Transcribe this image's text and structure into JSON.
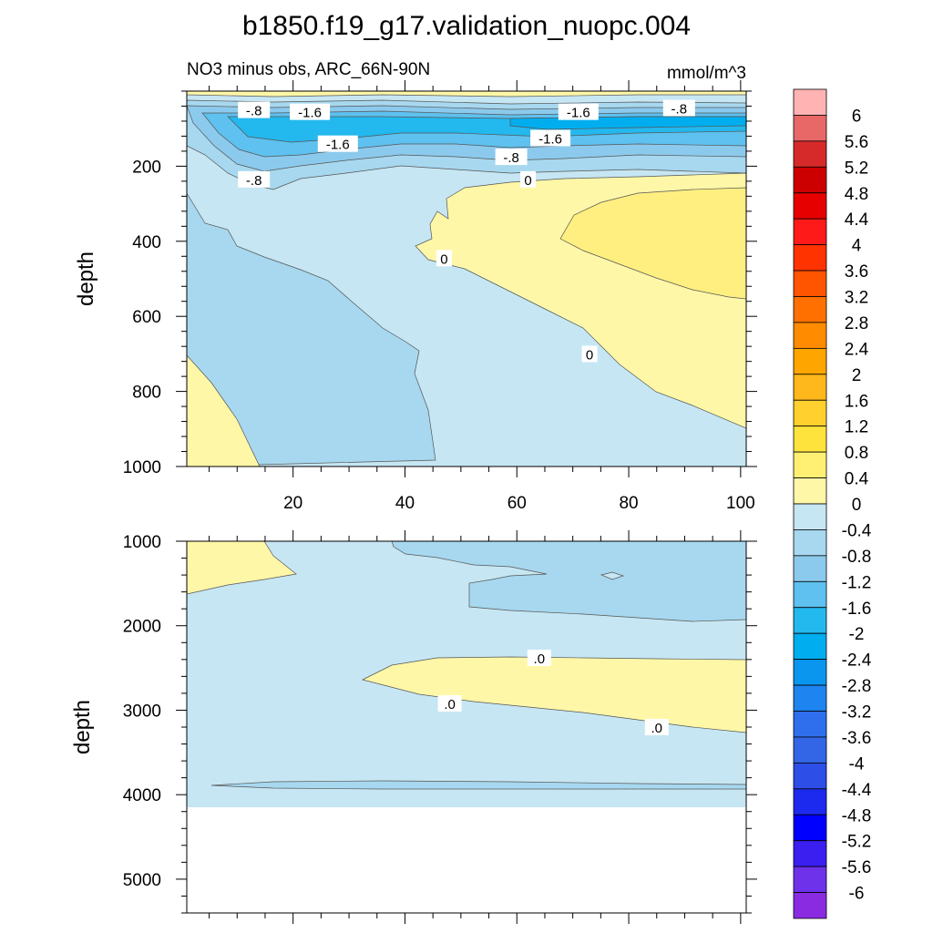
{
  "figure": {
    "title": "b1850.f19_g17.validation_nuopc.004",
    "left_subtitle": "NO3 minus obs, ARC_66N-90N",
    "right_subtitle": "mmol/m^3"
  },
  "chart_data": [
    {
      "type": "contour",
      "panel": "upper",
      "ylabel": "depth",
      "xlim": [
        1,
        101
      ],
      "ylim": [
        1000,
        0
      ],
      "x_ticks": [
        20,
        40,
        60,
        80,
        100
      ],
      "y_ticks": [
        200,
        400,
        600,
        800,
        1000
      ],
      "contour_labels": [
        {
          "text": "-.8",
          "x": 13,
          "y": 50
        },
        {
          "text": "-1.6",
          "x": 23,
          "y": 55
        },
        {
          "text": "-1.6",
          "x": 28,
          "y": 140
        },
        {
          "text": "-.8",
          "x": 13,
          "y": 235
        },
        {
          "text": "-1.6",
          "x": 71,
          "y": 55
        },
        {
          "text": "-.8",
          "x": 89,
          "y": 45
        },
        {
          "text": "-1.6",
          "x": 66,
          "y": 125
        },
        {
          "text": "-.8",
          "x": 59,
          "y": 175
        },
        {
          "text": "0",
          "x": 62,
          "y": 235
        },
        {
          "text": "0",
          "x": 47,
          "y": 445
        },
        {
          "text": "0",
          "x": 73,
          "y": 700
        }
      ]
    },
    {
      "type": "contour",
      "panel": "lower",
      "ylabel": "depth",
      "xlim": [
        1,
        101
      ],
      "ylim": [
        5400,
        1000
      ],
      "y_ticks": [
        1000,
        2000,
        3000,
        4000,
        5000
      ],
      "contour_labels": [
        {
          "text": ".0",
          "x": 64,
          "y": 2380
        },
        {
          "text": ".0",
          "x": 48,
          "y": 2920
        },
        {
          "text": ".0",
          "x": 85,
          "y": 3200
        }
      ]
    }
  ],
  "colorbar": {
    "labels": [
      "6",
      "5.6",
      "5.2",
      "4.8",
      "4.4",
      "4",
      "3.6",
      "3.2",
      "2.8",
      "2.4",
      "2",
      "1.6",
      "1.2",
      "0.8",
      "0.4",
      "0",
      "-0.4",
      "-0.8",
      "-1.2",
      "-1.6",
      "-2",
      "-2.4",
      "-2.8",
      "-3.2",
      "-3.6",
      "-4",
      "-4.4",
      "-4.8",
      "-5.2",
      "-5.6",
      "-6"
    ],
    "colors": [
      "#ffb3b3",
      "#e86868",
      "#d62a2a",
      "#cc0000",
      "#e60000",
      "#ff1a1a",
      "#ff3300",
      "#ff5500",
      "#ff7000",
      "#ff8c00",
      "#ffa500",
      "#ffb81c",
      "#ffd02e",
      "#ffe33d",
      "#fff073",
      "#fff7a8",
      "#c6e6f3",
      "#a7d8ef",
      "#8ccaed",
      "#5ec1ef",
      "#23b8ee",
      "#00aeef",
      "#0a96ef",
      "#1e84ef",
      "#2f6fee",
      "#3366e6",
      "#2e4ee8",
      "#1c2aef",
      "#0000ff",
      "#3a1ff0",
      "#6e32eb",
      "#8a2be2"
    ]
  }
}
